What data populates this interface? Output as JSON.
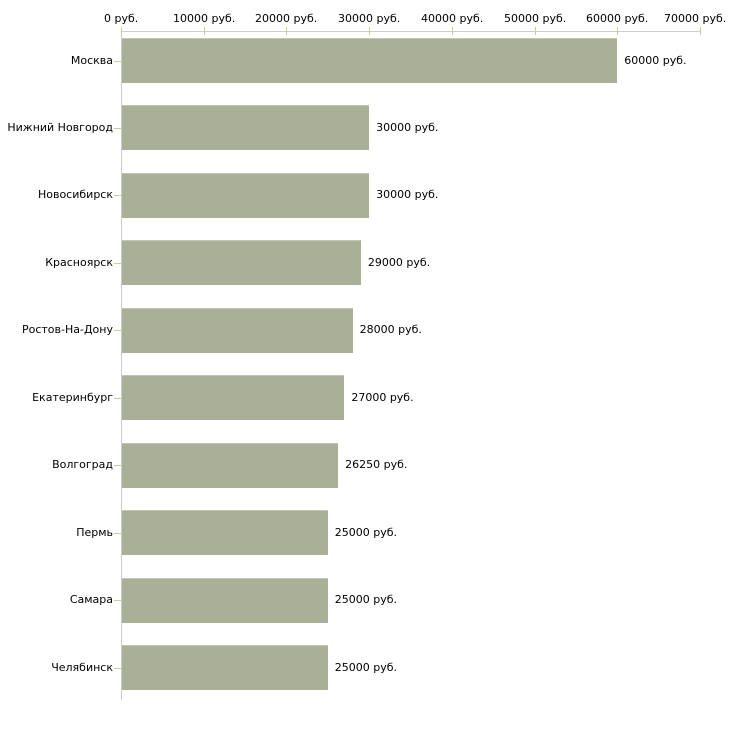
{
  "chart_data": {
    "type": "bar",
    "orientation": "horizontal",
    "title": "",
    "categories": [
      "Москва",
      "Нижний Новгород",
      "Новосибирск",
      "Красноярск",
      "Ростов-На-Дону",
      "Екатеринбург",
      "Волгоград",
      "Пермь",
      "Самара",
      "Челябинск"
    ],
    "values": [
      60000,
      30000,
      30000,
      29000,
      28000,
      27000,
      26250,
      25000,
      25000,
      25000
    ],
    "value_labels": [
      "60000 руб.",
      "30000 руб.",
      "30000 руб.",
      "29000 руб.",
      "28000 руб.",
      "27000 руб.",
      "26250 руб.",
      "25000 руб.",
      "25000 руб.",
      "25000 руб."
    ],
    "x_axis": {
      "position": "top",
      "tick_values": [
        0,
        10000,
        20000,
        30000,
        40000,
        50000,
        60000,
        70000
      ],
      "tick_labels": [
        "0 руб.",
        "10000 руб.",
        "20000 руб.",
        "30000 руб.",
        "40000 руб.",
        "50000 руб.",
        "60000 руб.",
        "70000 руб."
      ]
    },
    "xlim": [
      0,
      70000
    ],
    "grid": false,
    "legend": false,
    "colors": {
      "bar_fill": "#a9b097",
      "bar_edge_highlight": "#c2c6b2",
      "axis_line": "#cccccc",
      "tick_mark": "#cccc99",
      "text": "#000000",
      "background": "#ffffff"
    }
  }
}
